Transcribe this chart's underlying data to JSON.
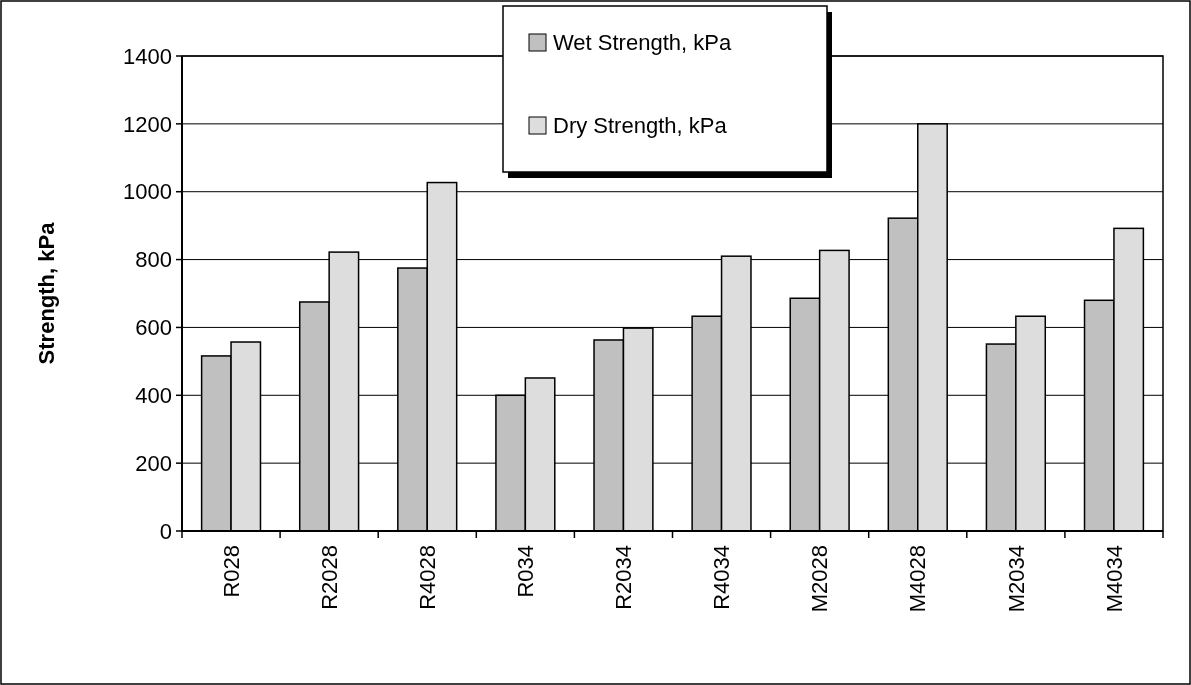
{
  "chart_data": {
    "type": "bar",
    "ylabel": "Strength, kPa",
    "categories": [
      "R028",
      "R2028",
      "R4028",
      "R034",
      "R2034",
      "R4034",
      "M2028",
      "M4028",
      "M2034",
      "M4034"
    ],
    "series": [
      {
        "name": "Wet Strength, kPa",
        "color": "#c0c0c0",
        "values": [
          516,
          675,
          775,
          400,
          563,
          633,
          686,
          922,
          551,
          680
        ]
      },
      {
        "name": "Dry Strength, kPa",
        "color": "#dddddd",
        "values": [
          557,
          822,
          1027,
          451,
          598,
          810,
          827,
          1200,
          633,
          892
        ]
      }
    ],
    "ylim": [
      0,
      1400
    ],
    "yticks": [
      0,
      200,
      400,
      600,
      800,
      1000,
      1200,
      1400
    ],
    "grid": "y",
    "legend": "top"
  }
}
